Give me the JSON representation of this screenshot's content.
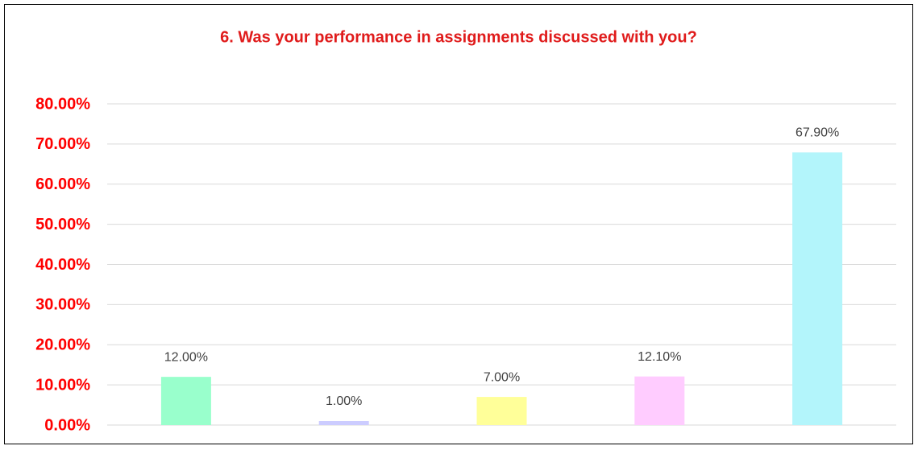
{
  "chart_data": {
    "type": "bar",
    "title": "6. Was your performance in assignments discussed with you?",
    "values": [
      12.0,
      1.0,
      7.0,
      12.1,
      67.9
    ],
    "value_labels": [
      "12.00%",
      "1.00%",
      "7.00%",
      "12.10%",
      "67.90%"
    ],
    "colors": [
      "#99ffcc",
      "#ccccff",
      "#ffff99",
      "#ffccff",
      "#b3f5fb"
    ],
    "ylim": [
      0,
      80
    ],
    "yticks": [
      {
        "value": 0,
        "label": "0.00%"
      },
      {
        "value": 10,
        "label": "10.00%"
      },
      {
        "value": 20,
        "label": "20.00%"
      },
      {
        "value": 30,
        "label": "30.00%"
      },
      {
        "value": 40,
        "label": "40.00%"
      },
      {
        "value": 50,
        "label": "50.00%"
      },
      {
        "value": 60,
        "label": "60.00%"
      },
      {
        "value": 70,
        "label": "70.00%"
      },
      {
        "value": 80,
        "label": "80.00%"
      }
    ],
    "grid": true
  }
}
